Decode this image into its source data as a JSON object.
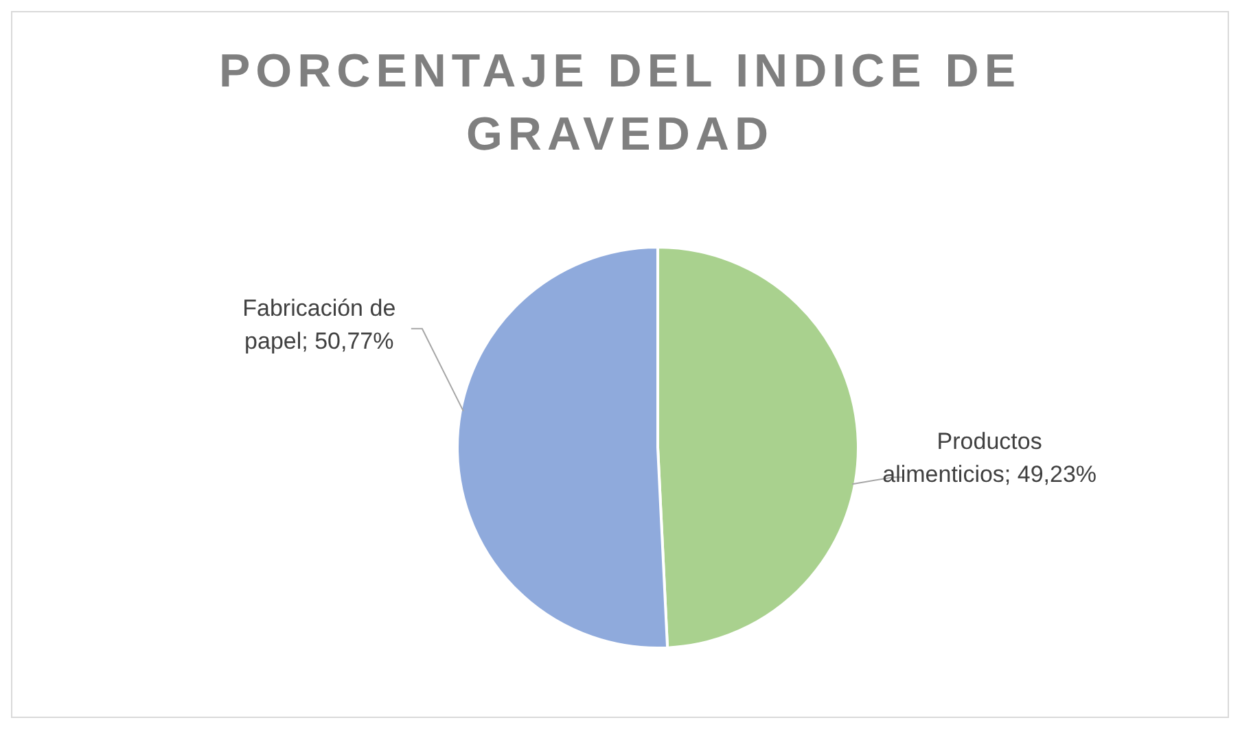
{
  "chart_data": {
    "type": "pie",
    "title": "PORCENTAJE DEL INDICE DE GRAVEDAD",
    "categories": [
      "Productos alimenticios",
      "Fabricación de papel"
    ],
    "values": [
      49.23,
      50.77
    ],
    "value_labels": [
      "49,23%",
      "50,77%"
    ],
    "colors": [
      "#a9d18e",
      "#8faadc"
    ],
    "legend": false
  }
}
